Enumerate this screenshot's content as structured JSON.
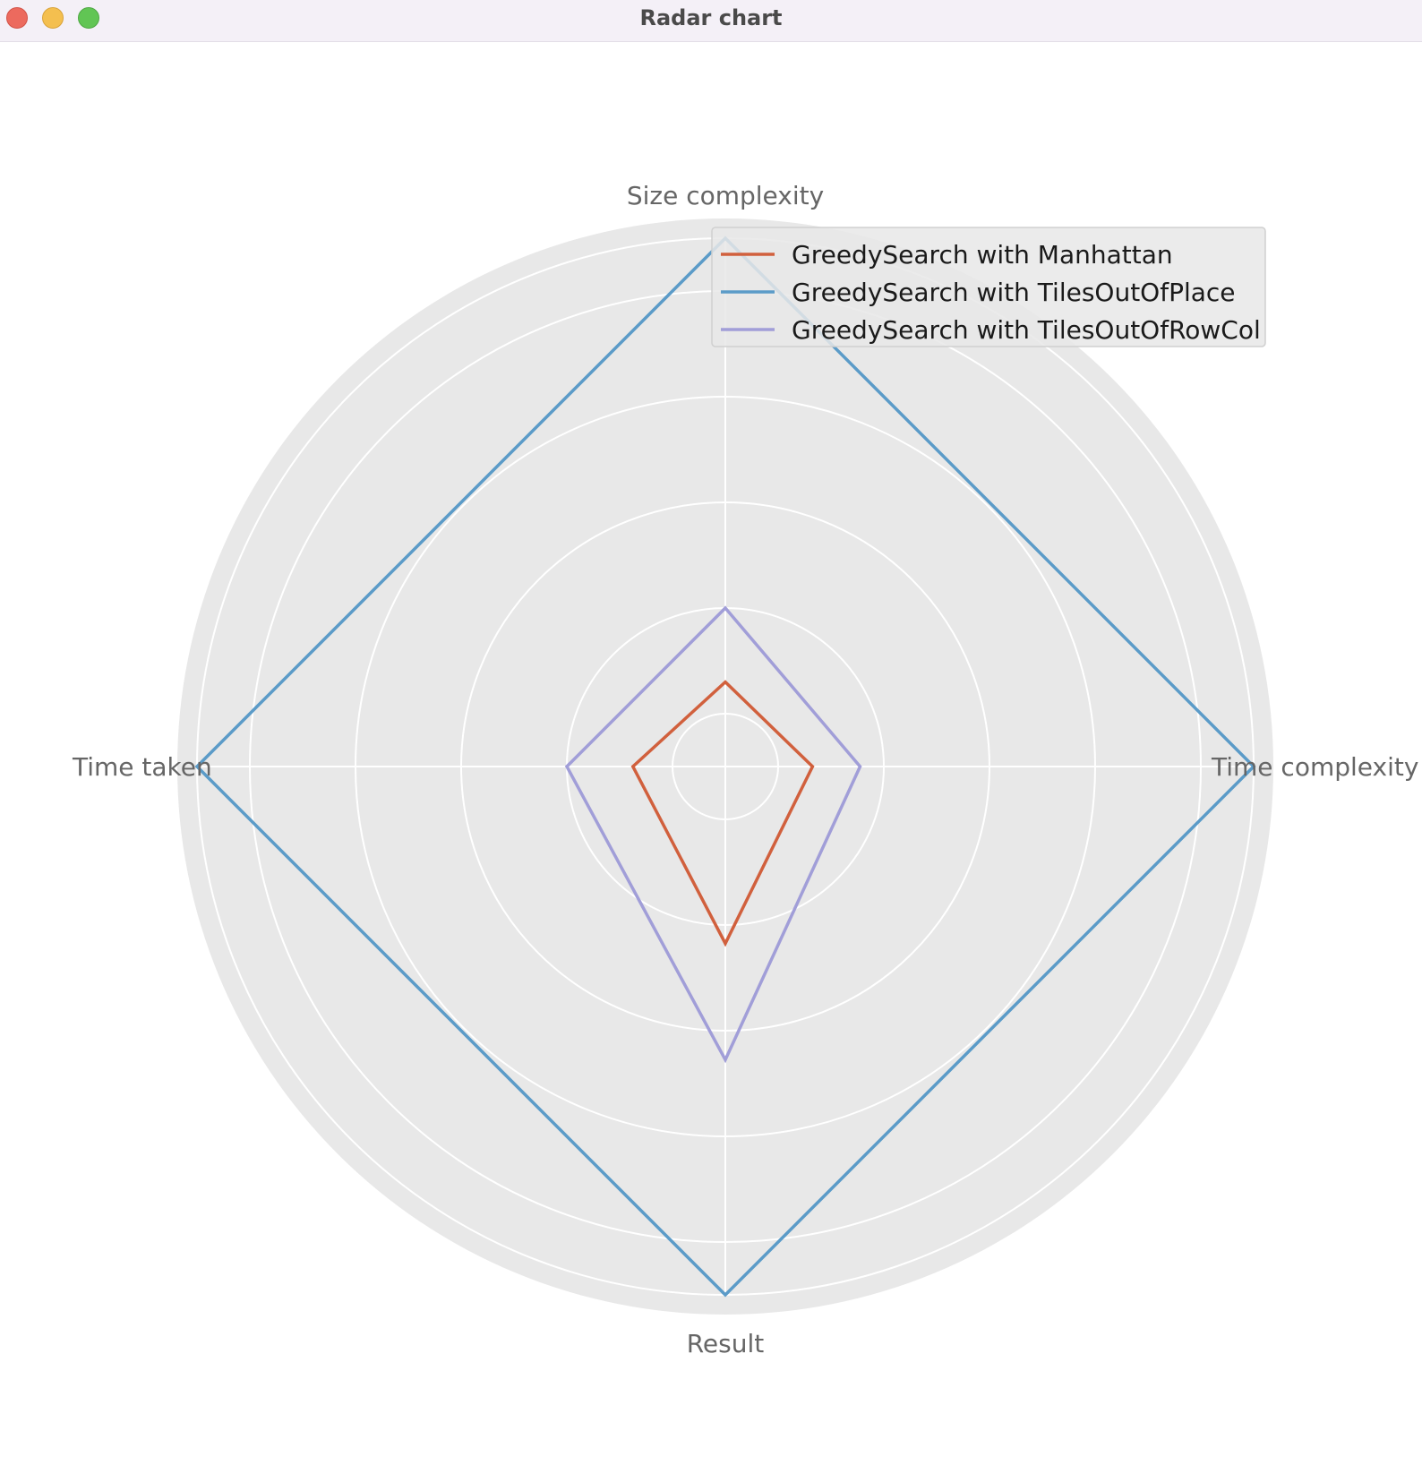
{
  "window": {
    "title": "Radar chart"
  },
  "colors": {
    "panel_background": "#e8e8e8",
    "grid": "#ffffff",
    "axis_label": "#666666",
    "legend_text": "#1a1a1a"
  },
  "chart_data": {
    "type": "radar",
    "axes": [
      "Size complexity",
      "Time complexity",
      "Result",
      "Time taken"
    ],
    "rlim": [
      0,
      1
    ],
    "rings": [
      0.1,
      0.3,
      0.5,
      0.7,
      0.9,
      1.0
    ],
    "grid": true,
    "legend_position": "top-right",
    "series": [
      {
        "name": "GreedySearch with Manhattan",
        "color": "#d1603d",
        "values": [
          0.16,
          0.165,
          0.335,
          0.175
        ]
      },
      {
        "name": "GreedySearch with TilesOutOfPlace",
        "color": "#5b9bc8",
        "values": [
          1.0,
          1.0,
          1.0,
          1.0
        ]
      },
      {
        "name": "GreedySearch with TilesOutOfRowCol",
        "color": "#a19ed8",
        "values": [
          0.3,
          0.255,
          0.555,
          0.3
        ]
      }
    ]
  }
}
